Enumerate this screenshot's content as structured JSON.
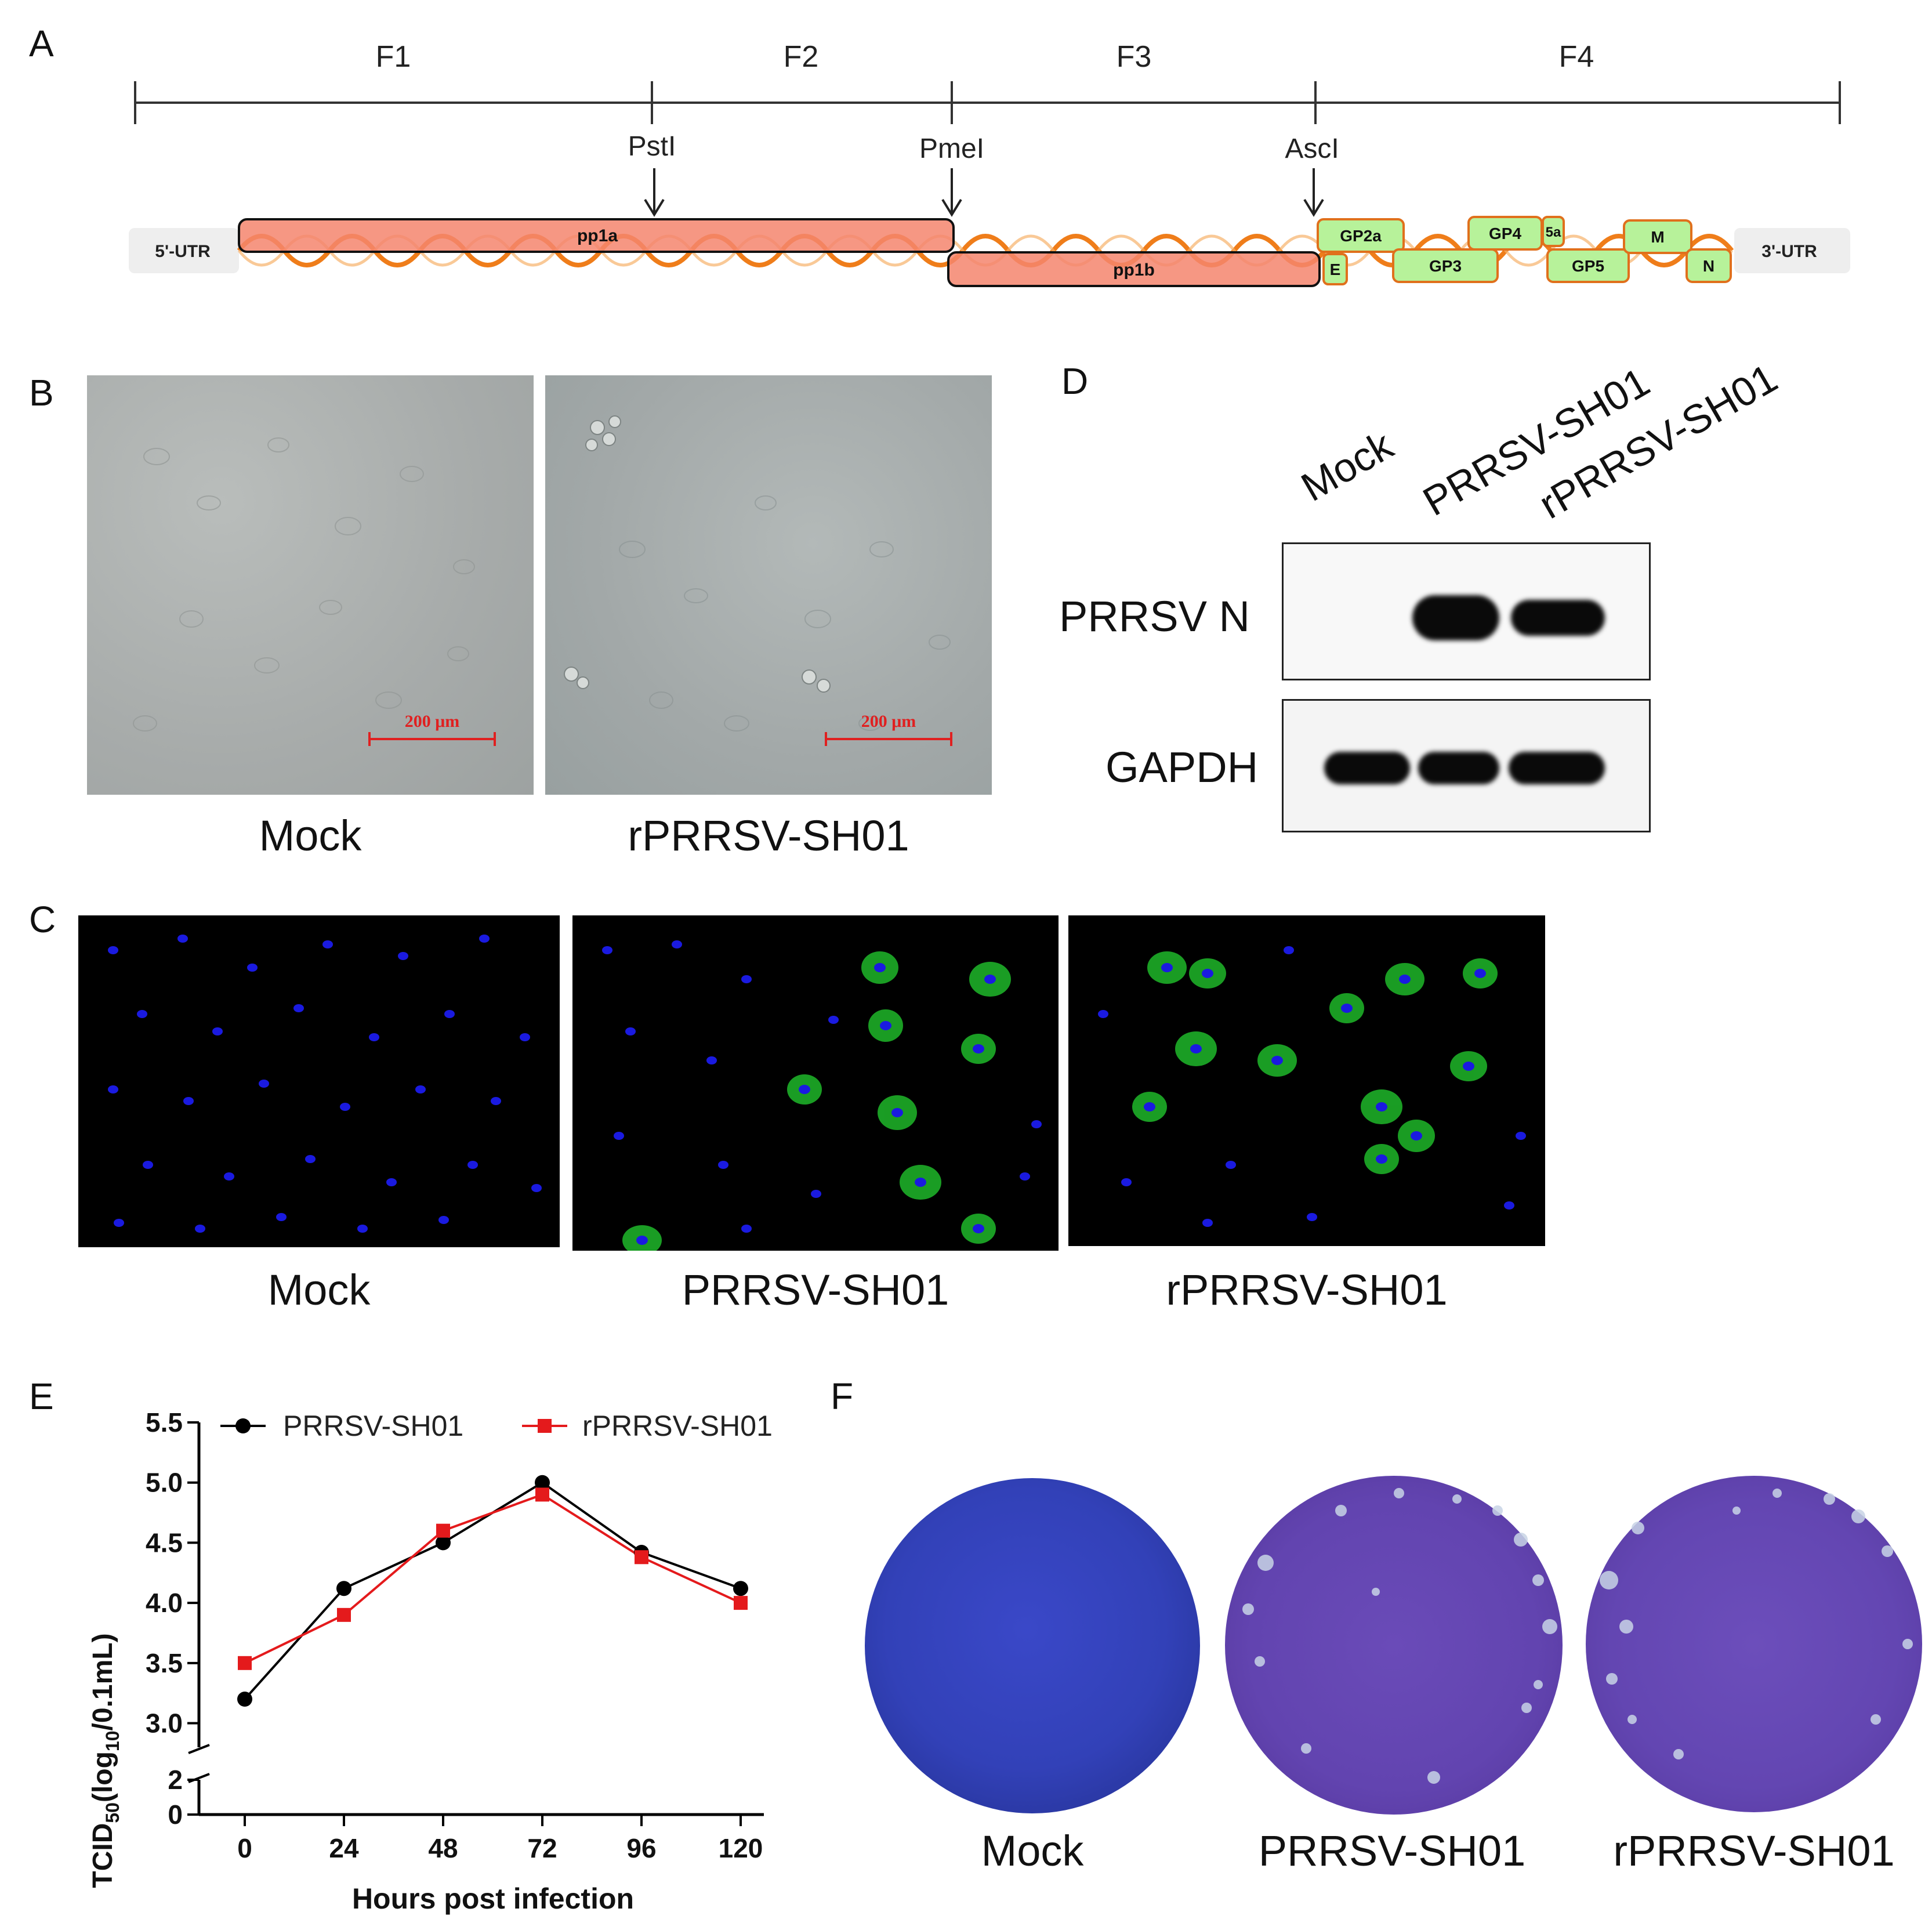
{
  "panel_letters": {
    "A": "A",
    "B": "B",
    "C": "C",
    "D": "D",
    "E": "E",
    "F": "F"
  },
  "panelA": {
    "fragments": [
      "F1",
      "F2",
      "F3",
      "F4"
    ],
    "enzymes": [
      "PstI",
      "PmeI",
      "AscI"
    ],
    "utr5": "5'-UTR",
    "utr3": "3'-UTR",
    "orfs": [
      "pp1a",
      "pp1b",
      "GP2a",
      "E",
      "GP3",
      "GP4",
      "5a",
      "GP5",
      "M",
      "N"
    ]
  },
  "panelB": {
    "scale_bar": "200 μm",
    "captions": [
      "Mock",
      "rPRRSV-SH01"
    ]
  },
  "panelC": {
    "captions": [
      "Mock",
      "PRRSV-SH01",
      "rPRRSV-SH01"
    ]
  },
  "panelD": {
    "lanes": [
      "Mock",
      "PRRSV-SH01",
      "rPRRSV-SH01"
    ],
    "rows": [
      "PRRSV N",
      "GAPDH"
    ]
  },
  "panelF": {
    "captions": [
      "Mock",
      "PRRSV-SH01",
      "rPRRSV-SH01"
    ]
  },
  "chart_data": {
    "type": "line",
    "xlabel": "Hours post infection",
    "ylabel_main": "TCID",
    "ylabel_sub": "50",
    "ylabel_paren": "(log",
    "ylabel_sub2": "10",
    "ylabel_tail": "/0.1mL)",
    "x": [
      0,
      24,
      48,
      72,
      96,
      120
    ],
    "x_ticks": [
      "0",
      "24",
      "48",
      "72",
      "96",
      "120"
    ],
    "y_ticks_upper": [
      "3.0",
      "3.5",
      "4.0",
      "4.5",
      "5.0",
      "5.5"
    ],
    "y_ticks_lower": [
      "0",
      "2"
    ],
    "ylim_upper": [
      2.8,
      5.5
    ],
    "ylim_lower": [
      0,
      2
    ],
    "series": [
      {
        "name": "PRRSV-SH01",
        "values": [
          3.2,
          4.12,
          4.5,
          5.0,
          4.42,
          4.12
        ],
        "color": "#000000",
        "marker": "circle"
      },
      {
        "name": "rPRRSV-SH01",
        "values": [
          3.5,
          3.9,
          4.6,
          4.9,
          4.38,
          4.0
        ],
        "color": "#e41a1c",
        "marker": "square"
      }
    ],
    "axis_break": true,
    "legend": "top"
  }
}
